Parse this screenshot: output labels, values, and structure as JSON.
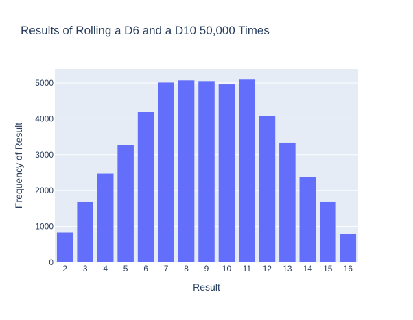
{
  "chart_data": {
    "type": "bar",
    "title": "Results of Rolling a D6 and a D10 50,000 Times",
    "xlabel": "Result",
    "ylabel": "Frequency of Result",
    "categories": [
      "2",
      "3",
      "4",
      "5",
      "6",
      "7",
      "8",
      "9",
      "10",
      "11",
      "12",
      "13",
      "14",
      "15",
      "16"
    ],
    "values": [
      830,
      1680,
      2470,
      3280,
      4190,
      5010,
      5070,
      5050,
      4960,
      5090,
      4080,
      3340,
      2370,
      1680,
      800
    ],
    "ylim": [
      0,
      5400
    ],
    "yticks": [
      0,
      1000,
      2000,
      3000,
      4000,
      5000
    ],
    "grid": true,
    "colors": {
      "bar": "#636efa",
      "plot_bg": "#e5ecf6",
      "grid": "#ffffff",
      "text": "#2a3f5f"
    }
  }
}
